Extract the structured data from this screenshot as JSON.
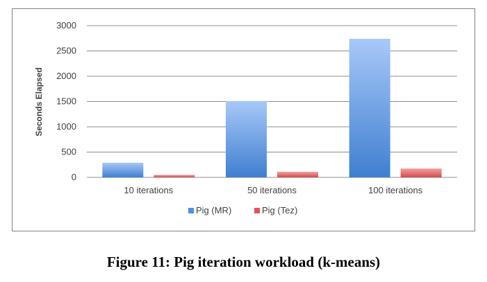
{
  "chart_data": {
    "type": "bar",
    "categories": [
      "10 iterations",
      "50 iterations",
      "100 iterations"
    ],
    "series": [
      {
        "name": "Pig (MR)",
        "values": [
          290,
          1510,
          2740
        ],
        "color": "#5b9bd5"
      },
      {
        "name": "Pig (Tez)",
        "values": [
          50,
          110,
          175
        ],
        "color": "#e06666"
      }
    ],
    "yticks": [
      0,
      500,
      1000,
      1500,
      2000,
      2500,
      3000
    ],
    "ylim": [
      0,
      3000
    ],
    "ylabel": "Seconds Elapsed",
    "xlabel": "",
    "grid": true,
    "legend_position": "bottom"
  },
  "caption": "Figure 11: Pig iteration workload (k-means)"
}
